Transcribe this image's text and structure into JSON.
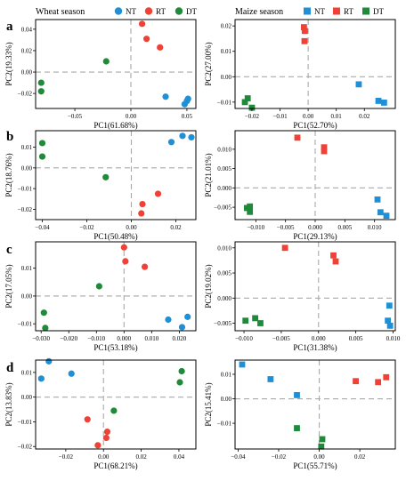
{
  "colors": {
    "NT": "#1f8fd6",
    "RT": "#ef4135",
    "DT": "#1e8a3a",
    "grid": "#a9a9a9"
  },
  "legends": {
    "left": {
      "title": "Wheat season",
      "marker": "circle",
      "entries": [
        "NT",
        "RT",
        "DT"
      ]
    },
    "right": {
      "title": "Maize season",
      "marker": "square",
      "entries": [
        "NT",
        "RT",
        "DT"
      ]
    }
  },
  "panel_labels": [
    "a",
    "b",
    "c",
    "d"
  ],
  "chart_data": [
    {
      "type": "scatter",
      "row": 0,
      "col": 0,
      "marker": "circle",
      "xlabel": "PC1(61.68%)",
      "ylabel": "PC2(19.33%)",
      "xlim": [
        -0.085,
        0.058
      ],
      "ylim": [
        -0.034,
        0.049
      ],
      "xticks": [
        -0.05,
        0.0,
        0.05
      ],
      "xticklabels": [
        "−0.05",
        "0.00",
        "0.05"
      ],
      "yticks": [
        -0.02,
        0.0,
        0.02,
        0.04
      ],
      "yticklabels": [
        "−0.02",
        "0.00",
        "0.02",
        "0.04"
      ],
      "series": [
        {
          "name": "NT",
          "x": [
            0.031,
            0.048,
            0.05,
            0.051
          ],
          "y": [
            -0.023,
            -0.03,
            -0.027,
            -0.025
          ]
        },
        {
          "name": "RT",
          "x": [
            0.01,
            0.014,
            0.026
          ],
          "y": [
            0.045,
            0.031,
            0.023
          ]
        },
        {
          "name": "DT",
          "x": [
            -0.022,
            -0.08,
            -0.08
          ],
          "y": [
            0.01,
            -0.01,
            -0.018
          ]
        }
      ]
    },
    {
      "type": "scatter",
      "row": 0,
      "col": 1,
      "marker": "square",
      "xlabel": "PC1(52.70%)",
      "ylabel": "PC2(27.00%)",
      "xlim": [
        -0.026,
        0.031
      ],
      "ylim": [
        -0.0125,
        0.0225
      ],
      "xticks": [
        -0.02,
        -0.01,
        0.0,
        0.01,
        0.02
      ],
      "xticklabels": [
        "−0.02",
        "−0.01",
        "0.00",
        "0.01",
        "0.02"
      ],
      "yticks": [
        -0.01,
        0.0,
        0.01,
        0.02
      ],
      "yticklabels": [
        "−0.01",
        "0.00",
        "0.01",
        "0.02"
      ],
      "series": [
        {
          "name": "NT",
          "x": [
            0.018,
            0.025,
            0.027
          ],
          "y": [
            -0.003,
            -0.0095,
            -0.0102
          ]
        },
        {
          "name": "RT",
          "x": [
            -0.0015,
            -0.0012,
            -0.0013
          ],
          "y": [
            0.0195,
            0.018,
            0.014
          ]
        },
        {
          "name": "DT",
          "x": [
            -0.0215,
            -0.0225,
            -0.02
          ],
          "y": [
            -0.0085,
            -0.01,
            -0.0122
          ]
        }
      ]
    },
    {
      "type": "scatter",
      "row": 1,
      "col": 0,
      "marker": "circle",
      "xlabel": "PC1(50.48%)",
      "ylabel": "PC2(18.76%)",
      "xlim": [
        -0.043,
        0.029
      ],
      "ylim": [
        -0.025,
        0.018
      ],
      "xticks": [
        -0.04,
        -0.02,
        0.0,
        0.02
      ],
      "xticklabels": [
        "−0.04",
        "−0.02",
        "0.00",
        "0.02"
      ],
      "yticks": [
        -0.02,
        -0.01,
        0.0,
        0.01
      ],
      "yticklabels": [
        "−0.02",
        "−0.01",
        "0.00",
        "0.01"
      ],
      "series": [
        {
          "name": "NT",
          "x": [
            0.018,
            0.023,
            0.027
          ],
          "y": [
            0.0125,
            0.0155,
            0.0148
          ]
        },
        {
          "name": "RT",
          "x": [
            0.012,
            0.005,
            0.0045
          ],
          "y": [
            -0.0125,
            -0.0175,
            -0.022
          ]
        },
        {
          "name": "DT",
          "x": [
            -0.04,
            -0.04,
            -0.0115
          ],
          "y": [
            0.012,
            0.0055,
            -0.0045
          ]
        }
      ]
    },
    {
      "type": "scatter",
      "row": 1,
      "col": 1,
      "marker": "square",
      "xlabel": "PC1(29.13%)",
      "ylabel": "PC2(21.01%)",
      "xlim": [
        -0.0135,
        0.0135
      ],
      "ylim": [
        -0.0082,
        0.0148
      ],
      "xticks": [
        -0.01,
        -0.005,
        0.0,
        0.005,
        0.01
      ],
      "xticklabels": [
        "−0.010",
        "−0.005",
        "0.000",
        "0.005",
        "0.010"
      ],
      "yticks": [
        -0.005,
        0.0,
        0.005,
        0.01
      ],
      "yticklabels": [
        "−0.005",
        "0.000",
        "0.005",
        "0.010"
      ],
      "series": [
        {
          "name": "NT",
          "x": [
            0.0105,
            0.011,
            0.012
          ],
          "y": [
            -0.003,
            -0.0063,
            -0.0072
          ]
        },
        {
          "name": "RT",
          "x": [
            -0.003,
            0.0015,
            0.0015
          ],
          "y": [
            0.013,
            0.0105,
            0.0095
          ]
        },
        {
          "name": "DT",
          "x": [
            -0.0115,
            -0.011,
            -0.011
          ],
          "y": [
            -0.0052,
            -0.0048,
            -0.0062
          ]
        }
      ]
    },
    {
      "type": "scatter",
      "row": 2,
      "col": 0,
      "marker": "circle",
      "xlabel": "PC1(53.18%)",
      "ylabel": "PC2(17.05%)",
      "xlim": [
        -0.032,
        0.026
      ],
      "ylim": [
        -0.0125,
        0.0195
      ],
      "xticks": [
        -0.03,
        -0.02,
        -0.01,
        0.0,
        0.01,
        0.02
      ],
      "xticklabels": [
        "−0.030",
        "−0.020",
        "−0.010",
        "0.000",
        "0.010",
        "0.020"
      ],
      "yticks": [
        -0.01,
        0.0,
        0.01
      ],
      "yticklabels": [
        "−0.01",
        "0.00",
        "0.01"
      ],
      "series": [
        {
          "name": "NT",
          "x": [
            0.016,
            0.021,
            0.023
          ],
          "y": [
            -0.0085,
            -0.0112,
            -0.0075
          ]
        },
        {
          "name": "RT",
          "x": [
            0.0,
            0.0005,
            0.0075
          ],
          "y": [
            0.0175,
            0.0125,
            0.0105
          ]
        },
        {
          "name": "DT",
          "x": [
            -0.009,
            -0.029,
            -0.0285
          ],
          "y": [
            0.0035,
            -0.006,
            -0.0115
          ]
        }
      ]
    },
    {
      "type": "scatter",
      "row": 2,
      "col": 1,
      "marker": "square",
      "xlabel": "PC1(31.38%)",
      "ylabel": "PC2(19.02%)",
      "xlim": [
        -0.0112,
        0.0103
      ],
      "ylim": [
        -0.0065,
        0.0112
      ],
      "xticks": [
        -0.01,
        -0.005,
        0.0,
        0.005,
        0.01
      ],
      "xticklabels": [
        "−0.010",
        "−0.005",
        "0.000",
        "0.005",
        "0.010"
      ],
      "yticks": [
        -0.005,
        0.0,
        0.005,
        0.01
      ],
      "yticklabels": [
        "−0.005",
        "0.000",
        "0.005",
        "0.010"
      ],
      "series": [
        {
          "name": "NT",
          "x": [
            0.0095,
            0.0093,
            0.0096
          ],
          "y": [
            -0.0015,
            -0.0045,
            -0.0055
          ]
        },
        {
          "name": "RT",
          "x": [
            -0.0045,
            0.002,
            0.0023
          ],
          "y": [
            0.01,
            0.0085,
            0.0073
          ]
        },
        {
          "name": "DT",
          "x": [
            -0.0098,
            -0.0085,
            -0.0078
          ],
          "y": [
            -0.0045,
            -0.004,
            -0.005
          ]
        }
      ]
    },
    {
      "type": "scatter",
      "row": 3,
      "col": 0,
      "marker": "circle",
      "xlabel": "PC1(68.21%)",
      "ylabel": "PC2(13.83%)",
      "xlim": [
        -0.036,
        0.049
      ],
      "ylim": [
        -0.021,
        0.015
      ],
      "xticks": [
        -0.02,
        0.0,
        0.02,
        0.04
      ],
      "xticklabels": [
        "−0.02",
        "0.00",
        "0.02",
        "0.04"
      ],
      "yticks": [
        -0.02,
        -0.01,
        0.0,
        0.01
      ],
      "yticklabels": [
        "−0.02",
        "−0.01",
        "0.00",
        "0.01"
      ],
      "series": [
        {
          "name": "NT",
          "x": [
            -0.033,
            -0.029,
            -0.017
          ],
          "y": [
            0.0075,
            0.0145,
            0.0095
          ]
        },
        {
          "name": "RT",
          "x": [
            -0.0085,
            0.002,
            0.0015,
            -0.003
          ],
          "y": [
            -0.009,
            -0.014,
            -0.0165,
            -0.0195
          ]
        },
        {
          "name": "DT",
          "x": [
            0.0055,
            0.0405,
            0.0415
          ],
          "y": [
            -0.0055,
            0.006,
            0.0105
          ]
        }
      ]
    },
    {
      "type": "scatter",
      "row": 3,
      "col": 1,
      "marker": "square",
      "xlabel": "PC1(55.71%)",
      "ylabel": "PC2(15.41%)",
      "xlim": [
        -0.0415,
        0.0375
      ],
      "ylim": [
        -0.0205,
        0.0158
      ],
      "xticks": [
        -0.04,
        -0.02,
        0.0,
        0.02
      ],
      "xticklabels": [
        "−0.04",
        "−0.02",
        "0.00",
        "0.02"
      ],
      "yticks": [
        -0.01,
        0.0,
        0.01
      ],
      "yticklabels": [
        "−0.01",
        "0.00",
        "0.01"
      ],
      "series": [
        {
          "name": "NT",
          "x": [
            -0.038,
            -0.024,
            -0.011
          ],
          "y": [
            0.014,
            0.008,
            0.0015
          ]
        },
        {
          "name": "RT",
          "x": [
            0.018,
            0.029,
            0.033
          ],
          "y": [
            0.0072,
            0.0068,
            0.0088
          ]
        },
        {
          "name": "DT",
          "x": [
            -0.011,
            0.0015,
            0.001
          ],
          "y": [
            -0.012,
            -0.0165,
            -0.0195
          ]
        }
      ]
    }
  ]
}
